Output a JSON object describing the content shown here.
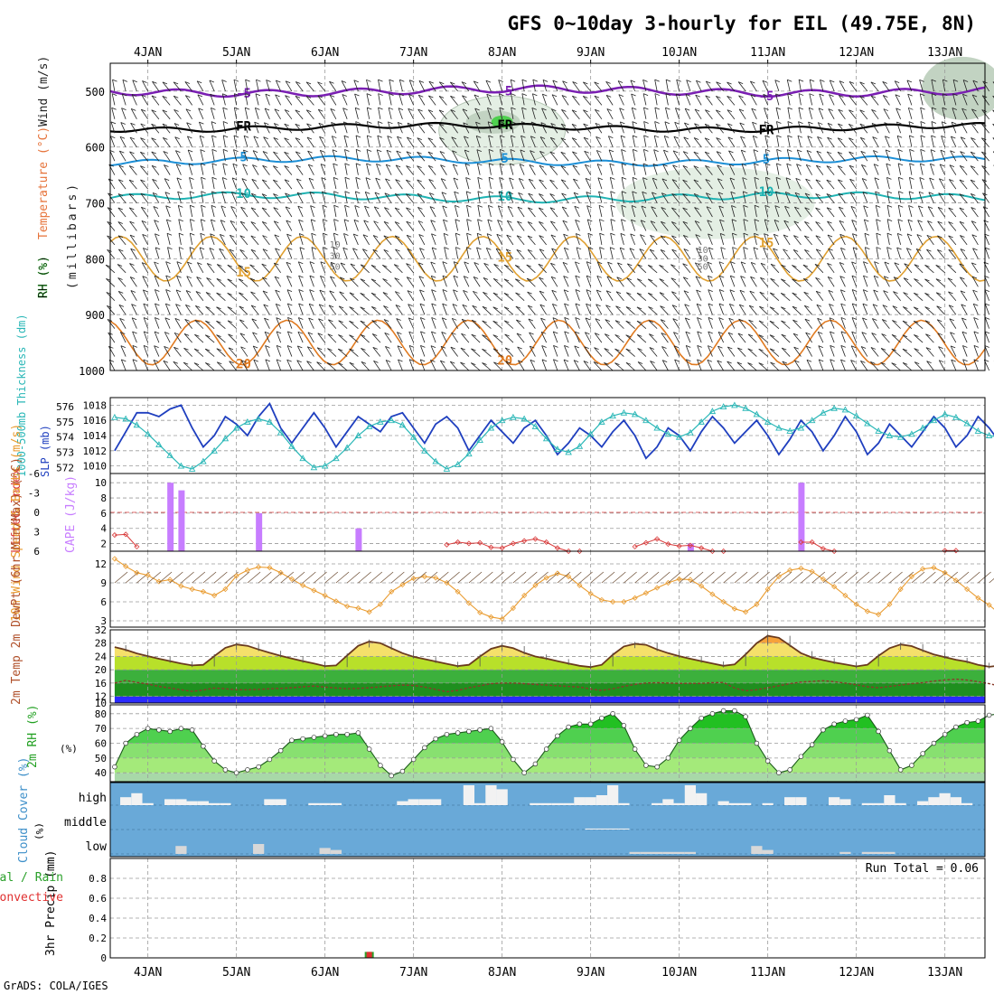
{
  "title": "GFS 0~10day 3-hourly for EIL (49.75E, 8N)",
  "footer": "GrADS: COLA/IGES",
  "dates": [
    "4JAN",
    "5JAN",
    "6JAN",
    "7JAN",
    "8JAN",
    "9JAN",
    "10JAN",
    "11JAN",
    "12JAN",
    "13JAN"
  ],
  "colors": {
    "frame": "#000000",
    "grid": "#9a9a9a",
    "rh_light": "#e4efe4",
    "rh_mid": "#c2d3c2",
    "rh_green": "#4fd04f",
    "rh_bright": "#22e022",
    "slp": "#1f3fbf",
    "thickness": "#2ab7b7",
    "cape": "#c77dff",
    "lifted": "#d93b3b",
    "wind": "#e99b2f",
    "temp_fill": "#f6a23a",
    "temp_line": "#6a3a1e",
    "cloud_bg": "#69a9d8",
    "cloud_bar": "#f2f2f2",
    "rh2m": "#22c022",
    "precip_total": "#2aa02a",
    "precip_conv": "#e03030"
  },
  "chart_data": [
    {
      "id": "upper-air",
      "type": "heatmap",
      "title": "",
      "ylabel_rh": "RH (%)",
      "ylabel_temp": "Temperature (°C)",
      "ylabel_wind": "Wind (m/s)",
      "ylabel_units": "(millibars)",
      "yticks": [
        500,
        600,
        700,
        800,
        900,
        1000
      ],
      "ylim": [
        1000,
        450
      ],
      "isotherm_labels": [
        {
          "text": "-5",
          "color": "#7a1fb3"
        },
        {
          "text": "FR",
          "color": "#000000"
        },
        {
          "text": "5",
          "color": "#1c8fd6"
        },
        {
          "text": "10",
          "color": "#1fb3b3"
        },
        {
          "text": "15",
          "color": "#e0a030"
        },
        {
          "text": "20",
          "color": "#e07a20"
        }
      ],
      "rh_labels": [
        "10",
        "30",
        "50"
      ]
    },
    {
      "id": "slp-thickness",
      "type": "line",
      "ylabel_left": "1000-500mb Thickness (dm)",
      "ylabel_right": "SLP (mb)",
      "yticks_left": [
        572,
        573,
        574,
        575,
        576
      ],
      "yticks_right": [
        1010,
        1012,
        1014,
        1016,
        1018
      ],
      "ylim_right": [
        1009,
        1019
      ],
      "series": [
        {
          "name": "SLP",
          "unit": "mb",
          "values": [
            1012.0,
            1014.5,
            1017.0,
            1017.0,
            1016.5,
            1017.5,
            1018.0,
            1015.0,
            1012.5,
            1014.0,
            1016.5,
            1015.5,
            1014.0,
            1016.5,
            1018.2,
            1015.0,
            1013.0,
            1015.0,
            1017.0,
            1015.0,
            1012.5,
            1014.5,
            1016.5,
            1015.5,
            1014.5,
            1016.5,
            1017.0,
            1015.0,
            1013.0,
            1015.5,
            1016.5,
            1015.0,
            1012.0,
            1014.0,
            1016.0,
            1014.5,
            1013.0,
            1015.0,
            1016.0,
            1014.0,
            1011.5,
            1013.0,
            1015.0,
            1014.0,
            1012.5,
            1014.5,
            1016.0,
            1014.0,
            1011.0,
            1012.5,
            1015.0,
            1014.0,
            1012.0,
            1014.5,
            1016.5,
            1015.0,
            1013.0,
            1014.5,
            1016.0,
            1014.0,
            1011.5,
            1013.5,
            1016.0,
            1014.5,
            1012.0,
            1014.0,
            1016.5,
            1014.5,
            1011.5,
            1013.0,
            1015.5,
            1014.0,
            1012.5,
            1014.5,
            1016.5,
            1015.0,
            1012.5,
            1014.0,
            1016.5,
            1015.0,
            1013.0,
            1015.0
          ]
        },
        {
          "name": "Thickness",
          "unit": "dm",
          "values": [
            575.3,
            575.2,
            574.8,
            574.2,
            573.5,
            572.8,
            572.1,
            571.9,
            572.4,
            573.1,
            573.9,
            574.6,
            575.0,
            575.2,
            575.0,
            574.3,
            573.4,
            572.6,
            572.0,
            572.1,
            572.6,
            573.3,
            574.1,
            574.7,
            575.0,
            575.1,
            574.8,
            574.0,
            573.1,
            572.4,
            571.9,
            572.2,
            572.9,
            573.8,
            574.6,
            575.1,
            575.3,
            575.2,
            574.7,
            573.9,
            573.2,
            573.0,
            573.4,
            574.2,
            575.0,
            575.4,
            575.6,
            575.5,
            575.1,
            574.6,
            574.2,
            574.0,
            574.3,
            575.0,
            575.7,
            576.0,
            576.1,
            575.9,
            575.5,
            575.0,
            574.6,
            574.4,
            574.6,
            575.1,
            575.6,
            575.9,
            575.8,
            575.4,
            574.9,
            574.4,
            574.1,
            574.0,
            574.2,
            574.6,
            575.1,
            575.5,
            575.3,
            574.9,
            574.4,
            574.1,
            574.0,
            574.2
          ]
        }
      ]
    },
    {
      "id": "cape-lifted",
      "type": "bar",
      "ylabel_left": "Lifted Index",
      "ylabel_right": "CAPE (J/kg)",
      "yticks_left": [
        "-6",
        "-3",
        "0",
        "3",
        "6"
      ],
      "yticks_right": [
        "2",
        "4",
        "6",
        "8",
        "10"
      ],
      "series": [
        {
          "name": "CAPE",
          "unit": "J/kg",
          "points": [
            [
              5,
              10
            ],
            [
              6,
              9
            ],
            [
              13,
              6
            ],
            [
              22,
              4
            ],
            [
              51,
              1
            ],
            [
              52,
              2
            ],
            [
              54,
              1
            ],
            [
              62,
              10
            ],
            [
              68,
              1
            ]
          ]
        },
        {
          "name": "Lifted Index",
          "unit": "",
          "values": [
            3.5,
            3.4,
            5.3,
            null,
            null,
            null,
            null,
            null,
            null,
            null,
            null,
            null,
            null,
            null,
            null,
            null,
            null,
            null,
            null,
            null,
            null,
            null,
            null,
            null,
            null,
            null,
            null,
            null,
            null,
            null,
            5.0,
            4.6,
            4.8,
            4.7,
            5.4,
            5.5,
            4.8,
            4.4,
            4.1,
            4.6,
            5.5,
            6.0,
            6.0,
            null,
            null,
            null,
            null,
            5.3,
            4.7,
            4.1,
            4.9,
            5.2,
            5.1,
            5.5,
            6.0,
            6.0,
            null,
            null,
            null,
            null,
            null,
            null,
            4.6,
            4.6,
            5.6,
            6.0,
            null,
            null,
            null,
            null,
            null,
            null,
            null,
            null,
            null,
            5.9,
            5.9,
            null,
            null,
            null,
            null,
            null
          ]
        }
      ]
    },
    {
      "id": "wind10m",
      "type": "line",
      "ylabel": "10m Wind Speed & Barbs (m/s)",
      "yticks": [
        3,
        6,
        9,
        12
      ],
      "ylim": [
        2,
        14
      ],
      "series": [
        {
          "name": "10m Wind Speed",
          "unit": "m/s",
          "values": [
            12.8,
            11.6,
            10.6,
            10.2,
            9.2,
            9.5,
            8.5,
            8.0,
            7.6,
            7.0,
            8.0,
            10.1,
            11.0,
            11.5,
            11.4,
            10.6,
            9.6,
            8.6,
            7.8,
            7.0,
            6.1,
            5.3,
            5.0,
            4.4,
            5.6,
            7.6,
            8.7,
            9.7,
            10.0,
            9.8,
            9.0,
            7.6,
            5.8,
            4.3,
            3.6,
            3.3,
            5.0,
            7.0,
            8.6,
            9.8,
            10.5,
            10.0,
            8.6,
            7.3,
            6.3,
            6.0,
            6.0,
            6.6,
            7.4,
            8.2,
            9.0,
            9.6,
            9.5,
            8.5,
            7.2,
            6.0,
            4.9,
            4.4,
            5.6,
            8.0,
            10.0,
            11.0,
            11.3,
            10.8,
            9.6,
            8.4,
            7.0,
            5.6,
            4.5,
            4.0,
            5.6,
            8.0,
            10.0,
            11.2,
            11.4,
            10.6,
            9.4,
            8.0,
            6.6,
            5.5,
            4.0,
            6.5
          ]
        }
      ]
    },
    {
      "id": "temp2m",
      "type": "area",
      "ylabel": "2m Temp 2m DewPt (6hr Min/Max) (°C)",
      "yticks": [
        10,
        12,
        16,
        20,
        24,
        28,
        32
      ],
      "ylim": [
        10,
        32
      ],
      "series": [
        {
          "name": "2m Temp",
          "unit": "°C",
          "values": [
            26.8,
            26.0,
            24.9,
            24.1,
            23.3,
            22.6,
            21.9,
            21.3,
            21.5,
            24.1,
            26.6,
            27.6,
            27.2,
            26.1,
            25.1,
            24.2,
            23.4,
            22.6,
            21.9,
            21.1,
            21.3,
            24.3,
            27.2,
            28.5,
            28.0,
            26.5,
            25.0,
            23.9,
            23.2,
            22.5,
            21.8,
            21.1,
            21.5,
            24.0,
            26.3,
            27.2,
            26.5,
            25.1,
            24.0,
            23.4,
            22.6,
            21.9,
            21.2,
            20.8,
            21.5,
            24.5,
            27.0,
            27.8,
            27.5,
            26.1,
            25.0,
            24.1,
            23.3,
            22.6,
            21.9,
            21.2,
            21.6,
            24.6,
            28.0,
            30.2,
            29.6,
            27.3,
            25.0,
            23.7,
            22.9,
            22.2,
            21.6,
            21.0,
            21.5,
            24.2,
            26.5,
            27.6,
            27.1,
            25.8,
            24.6,
            23.8,
            23.0,
            22.4,
            21.5,
            20.9,
            21.3,
            24.5
          ]
        },
        {
          "name": "2m DewPt",
          "unit": "°C",
          "values": [
            16.0,
            16.8,
            16.2,
            15.7,
            15.0,
            14.5,
            14.0,
            13.5,
            13.9,
            14.5,
            14.3,
            14.0,
            14.0,
            14.1,
            14.3,
            14.4,
            14.6,
            14.9,
            15.1,
            14.8,
            14.5,
            14.3,
            14.4,
            14.6,
            14.9,
            15.2,
            15.4,
            15.3,
            14.8,
            14.1,
            13.4,
            13.8,
            14.6,
            15.2,
            15.8,
            16.0,
            16.0,
            15.8,
            15.6,
            15.4,
            15.2,
            15.0,
            14.8,
            14.2,
            13.8,
            14.3,
            15.0,
            15.6,
            16.0,
            16.1,
            16.0,
            15.9,
            15.9,
            15.9,
            16.1,
            16.2,
            14.5,
            13.7,
            14.0,
            14.6,
            15.2,
            15.8,
            16.3,
            16.5,
            16.7,
            16.4,
            16.0,
            15.5,
            14.9,
            14.6,
            15.0,
            15.4,
            15.8,
            16.1,
            16.6,
            16.9,
            17.2,
            16.9,
            16.4,
            15.8,
            15.1,
            14.4
          ]
        }
      ]
    },
    {
      "id": "rh2m",
      "type": "area",
      "ylabel": "2m RH (%)",
      "yticks": [
        40,
        50,
        60,
        70,
        80
      ],
      "ylim": [
        34,
        86
      ],
      "series": [
        {
          "name": "2m RH",
          "unit": "%",
          "values": [
            44,
            60,
            66,
            70,
            69,
            68,
            70,
            69,
            58,
            48,
            42,
            40,
            42,
            44,
            49,
            55,
            62,
            63,
            64,
            65,
            66,
            66,
            67,
            56,
            45,
            38,
            41,
            49,
            57,
            63,
            66,
            67,
            68,
            69,
            70,
            61,
            49,
            40,
            46,
            56,
            65,
            71,
            73,
            73,
            77,
            80,
            72,
            56,
            45,
            44,
            50,
            62,
            70,
            77,
            80,
            82,
            82,
            78,
            60,
            48,
            40,
            42,
            51,
            59,
            69,
            73,
            75,
            76,
            79,
            68,
            55,
            42,
            45,
            53,
            60,
            66,
            71,
            74,
            75,
            79,
            80,
            51
          ]
        }
      ]
    },
    {
      "id": "cloud-cover",
      "type": "bar",
      "ylabel": "Cloud Cover (%)",
      "levels": [
        "high",
        "middle",
        "low"
      ],
      "series": [
        {
          "name": "high",
          "unit": "%",
          "values": [
            0,
            40,
            60,
            10,
            0,
            30,
            30,
            20,
            20,
            10,
            10,
            0,
            0,
            0,
            30,
            30,
            0,
            0,
            10,
            10,
            10,
            0,
            0,
            0,
            0,
            0,
            20,
            30,
            30,
            30,
            0,
            0,
            100,
            10,
            100,
            80,
            0,
            0,
            10,
            10,
            10,
            10,
            40,
            40,
            50,
            100,
            10,
            0,
            0,
            10,
            30,
            10,
            100,
            60,
            0,
            20,
            10,
            10,
            0,
            10,
            0,
            40,
            40,
            0,
            0,
            40,
            30,
            0,
            10,
            10,
            50,
            10,
            0,
            20,
            40,
            60,
            40,
            10,
            0,
            0,
            0,
            0
          ]
        },
        {
          "name": "middle",
          "unit": "%",
          "values": [
            0,
            0,
            0,
            0,
            0,
            0,
            0,
            0,
            0,
            0,
            0,
            0,
            0,
            0,
            0,
            0,
            0,
            0,
            0,
            0,
            0,
            0,
            0,
            0,
            0,
            0,
            0,
            0,
            0,
            0,
            0,
            0,
            0,
            0,
            0,
            0,
            0,
            0,
            0,
            0,
            0,
            0,
            0,
            5,
            5,
            5,
            5,
            0,
            0,
            0,
            0,
            0,
            0,
            0,
            0,
            0,
            0,
            0,
            0,
            0,
            0,
            0,
            0,
            0,
            0,
            0,
            0,
            0,
            0,
            0,
            0,
            0,
            0,
            0,
            0,
            0,
            0,
            0,
            0,
            0,
            0,
            0
          ]
        },
        {
          "name": "low",
          "unit": "%",
          "values": [
            0,
            0,
            0,
            0,
            0,
            0,
            40,
            0,
            0,
            0,
            0,
            0,
            0,
            50,
            0,
            0,
            0,
            0,
            0,
            30,
            20,
            0,
            0,
            0,
            0,
            0,
            0,
            0,
            0,
            0,
            0,
            0,
            0,
            0,
            0,
            0,
            0,
            0,
            0,
            0,
            0,
            0,
            0,
            0,
            0,
            0,
            0,
            10,
            10,
            10,
            10,
            10,
            10,
            0,
            0,
            0,
            0,
            0,
            40,
            20,
            0,
            0,
            0,
            0,
            0,
            0,
            10,
            0,
            10,
            10,
            10,
            0,
            0,
            0,
            0,
            0,
            0,
            0,
            0,
            0,
            0,
            20
          ]
        }
      ]
    },
    {
      "id": "precip",
      "type": "bar",
      "ylabel": "3hr Precip (mm)",
      "legend_total": "Total / Rain",
      "legend_conv": "Convective",
      "run_total_label": "Run Total = 0.06",
      "yticks": [
        "0",
        "0.2",
        "0.4",
        "0.6",
        "0.8"
      ],
      "ylim": [
        0,
        1.0
      ],
      "series": [
        {
          "name": "Total",
          "unit": "mm",
          "points": [
            [
              23,
              0.06
            ]
          ]
        },
        {
          "name": "Convective",
          "unit": "mm",
          "points": [
            [
              23,
              0.06
            ]
          ]
        }
      ]
    }
  ]
}
